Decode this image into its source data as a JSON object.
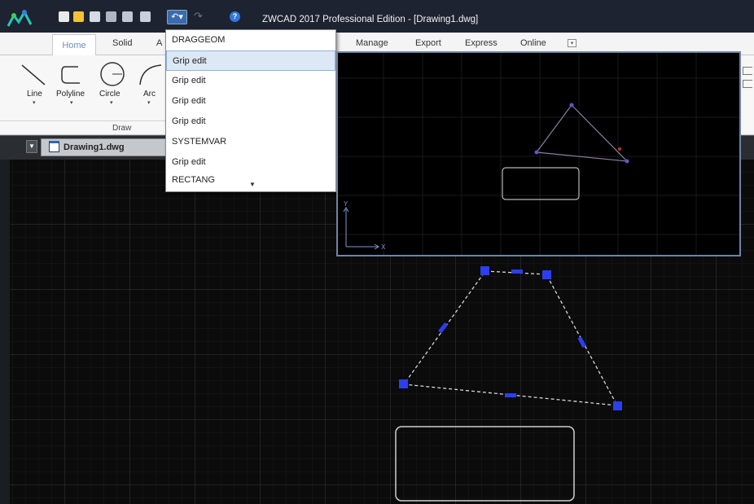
{
  "window": {
    "title": "ZWCAD 2017 Professional Edition - [Drawing1.dwg]"
  },
  "quick_access": {
    "icons": [
      "new-icon",
      "open-icon",
      "save-icon",
      "save-as-icon",
      "print-icon",
      "plot-icon",
      "undo-icon",
      "redo-icon",
      "help-icon"
    ]
  },
  "ribbon": {
    "tabs": [
      "Home",
      "Solid",
      "A",
      "Manage",
      "Export",
      "Express",
      "Online"
    ],
    "draw_tools": [
      "Line",
      "Polyline",
      "Circle",
      "Arc"
    ],
    "panel_title": "Draw"
  },
  "document": {
    "tab_name": "Drawing1.dwg"
  },
  "undo_dropdown": {
    "items": [
      "DRAGGEOM",
      "Grip edit",
      "Grip edit",
      "Grip edit",
      "Grip edit",
      "SYSTEMVAR",
      "Grip edit",
      "RECTANG"
    ],
    "selected_index": 1
  },
  "preview": {
    "axis_x": "X",
    "axis_y": "Y"
  },
  "colors": {
    "title_bar": "#1d2330",
    "grip": "#2b3ff0",
    "canvas_bg": "#0b0b0b",
    "preview_border": "#6f84a4",
    "selection": "#dde8f5"
  }
}
